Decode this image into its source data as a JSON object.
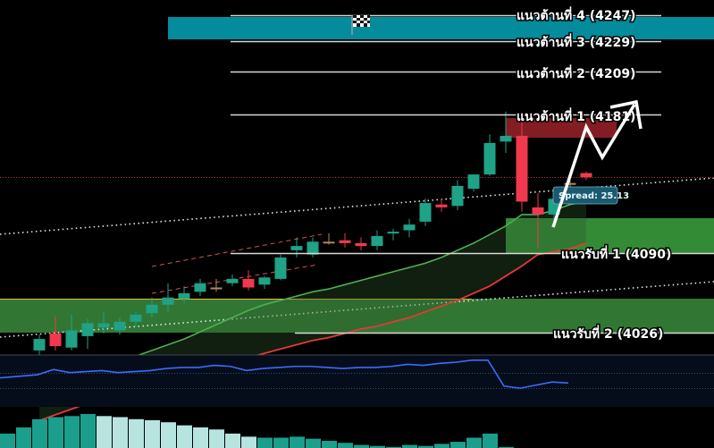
{
  "colors": {
    "background": "#000000",
    "up": "#1fa286",
    "down": "#f0394e",
    "doji": "#b08a5a",
    "top_band": "#048c9c",
    "resistance_zone": "#8b1d26",
    "support_zone": "#3a9a3c",
    "support_zone_low": "#3a8c3c",
    "ma_fast": "#4caf50",
    "ma_slow": "#e53935",
    "rsi_line": "#3b6cff",
    "vol_dark": "#1b9e8c",
    "vol_light": "#b8e4e0",
    "level_line": "#d8d8d8"
  },
  "levels": {
    "resistance": [
      {
        "label": "แนวต้านที่ 4 (4247)",
        "price": 4247
      },
      {
        "label": "แนวต้านที่ 3 (4229)",
        "price": 4229
      },
      {
        "label": "แนวต้านที่ 2 (4209)",
        "price": 4209
      },
      {
        "label": "แนวต้านที่ 1 (4181)",
        "price": 4181
      }
    ],
    "support": [
      {
        "label": "แนวรับที่ 1 (4090)",
        "price": 4090
      },
      {
        "label": "แนวรับที่ 2 (4026)",
        "price": 4026
      }
    ]
  },
  "spread_label": "Spread: 25.13",
  "flag_icon": "checkered-flag-icon",
  "chart_data": {
    "type": "candlestick",
    "title": "",
    "candles": [
      {
        "o": 4013,
        "h": 4024,
        "l": 3988,
        "c": 4021
      },
      {
        "o": 4025,
        "h": 4037,
        "l": 4013,
        "c": 4016
      },
      {
        "o": 4015,
        "h": 4038,
        "l": 4013,
        "c": 4027
      },
      {
        "o": 4023,
        "h": 4035,
        "l": 4014,
        "c": 4032
      },
      {
        "o": 4029,
        "h": 4040,
        "l": 4025,
        "c": 4032
      },
      {
        "o": 4027,
        "h": 4036,
        "l": 4024,
        "c": 4033
      },
      {
        "o": 4033,
        "h": 4040,
        "l": 4030,
        "c": 4038
      },
      {
        "o": 4039,
        "h": 4050,
        "l": 4036,
        "c": 4045
      },
      {
        "o": 4045,
        "h": 4060,
        "l": 4040,
        "c": 4050
      },
      {
        "o": 4049,
        "h": 4058,
        "l": 4046,
        "c": 4053
      },
      {
        "o": 4054,
        "h": 4063,
        "l": 4051,
        "c": 4060
      },
      {
        "o": 4057,
        "h": 4063,
        "l": 4054,
        "c": 4057
      },
      {
        "o": 4060,
        "h": 4066,
        "l": 4058,
        "c": 4063
      },
      {
        "o": 4063,
        "h": 4069,
        "l": 4055,
        "c": 4057
      },
      {
        "o": 4059,
        "h": 4065,
        "l": 4056,
        "c": 4064
      },
      {
        "o": 4063,
        "h": 4080,
        "l": 4062,
        "c": 4078
      },
      {
        "o": 4083,
        "h": 4092,
        "l": 4078,
        "c": 4086
      },
      {
        "o": 4080,
        "h": 4092,
        "l": 4078,
        "c": 4089
      },
      {
        "o": 4089,
        "h": 4095,
        "l": 4087,
        "c": 4089
      },
      {
        "o": 4090,
        "h": 4095,
        "l": 4085,
        "c": 4088
      },
      {
        "o": 4088,
        "h": 4092,
        "l": 4083,
        "c": 4086
      },
      {
        "o": 4086,
        "h": 4097,
        "l": 4083,
        "c": 4093
      },
      {
        "o": 4095,
        "h": 4098,
        "l": 4090,
        "c": 4096
      },
      {
        "o": 4097,
        "h": 4105,
        "l": 4092,
        "c": 4101
      },
      {
        "o": 4103,
        "h": 4119,
        "l": 4100,
        "c": 4116
      },
      {
        "o": 4115,
        "h": 4119,
        "l": 4110,
        "c": 4113
      },
      {
        "o": 4114,
        "h": 4132,
        "l": 4111,
        "c": 4128
      },
      {
        "o": 4126,
        "h": 4135,
        "l": 4124,
        "c": 4136
      },
      {
        "o": 4136,
        "h": 4164,
        "l": 4135,
        "c": 4158
      },
      {
        "o": 4159,
        "h": 4180,
        "l": 4151,
        "c": 4163
      },
      {
        "o": 4163,
        "h": 4173,
        "l": 4110,
        "c": 4117
      },
      {
        "o": 4113,
        "h": 4123,
        "l": 4085,
        "c": 4108
      },
      {
        "o": 4108,
        "h": 4123,
        "l": 4100,
        "c": 4119
      },
      {
        "o": 4130,
        "h": 4133,
        "l": 4115,
        "c": 4130
      },
      {
        "o": 4137,
        "h": 4138,
        "l": 4132,
        "c": 4134
      }
    ],
    "ma_fast": [
      3984,
      3988,
      3992,
      3996,
      4000,
      4005,
      4009,
      4013,
      4017,
      4021,
      4026,
      4031,
      4036,
      4041,
      4045,
      4048,
      4051,
      4054,
      4056,
      4059,
      4062,
      4065,
      4068,
      4071,
      4074,
      4078,
      4083,
      4088,
      4094,
      4100,
      4108,
      4108,
      4111,
      4115,
      4117
    ],
    "ma_slow": [
      3964,
      3968,
      3972,
      3976,
      3979,
      3982,
      3986,
      3989,
      3992,
      3995,
      3998,
      4001,
      4004,
      4008,
      4011,
      4014,
      4017,
      4020,
      4022,
      4025,
      4028,
      4030,
      4033,
      4036,
      4040,
      4044,
      4048,
      4053,
      4058,
      4065,
      4072,
      4080,
      4082,
      4084,
      4088
    ],
    "rsi": [
      48,
      51,
      56,
      53,
      54,
      55,
      53,
      54,
      55,
      57,
      58,
      58,
      60,
      59,
      55,
      57,
      58,
      59,
      59,
      58,
      57,
      58,
      58,
      59,
      61,
      60,
      62,
      63,
      65,
      65,
      40,
      38,
      41,
      44,
      43
    ],
    "volume": [
      14,
      20,
      28,
      30,
      31,
      33,
      31,
      30,
      28,
      27,
      25,
      22,
      20,
      18,
      14,
      11,
      10,
      10,
      11,
      9,
      7,
      5,
      3,
      2,
      1,
      3,
      2,
      4,
      6,
      10,
      14,
      1,
      0,
      0,
      0
    ],
    "ylim": [
      3975,
      4260
    ]
  }
}
